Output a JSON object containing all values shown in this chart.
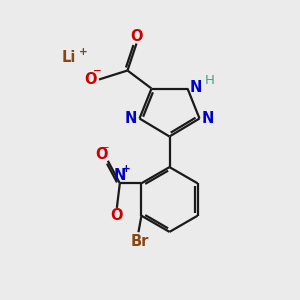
{
  "bg_color": "#ebebeb",
  "bond_color": "#1a1a1a",
  "bond_width": 1.6,
  "colors": {
    "N": "#0000cc",
    "O": "#cc0000",
    "Br": "#8B4513",
    "Li": "#8B4513",
    "H": "#4a9e8e",
    "C": "#1a1a1a"
  },
  "font_size": 10.5
}
